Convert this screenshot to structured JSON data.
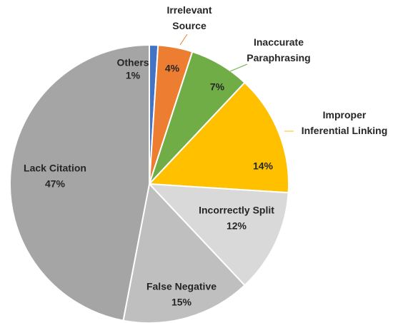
{
  "chart_data": {
    "type": "pie",
    "categories": [
      "Others",
      "Irrelevant Source",
      "Inaccurate Paraphrasing",
      "Improper Inferential Linking",
      "Incorrectly Split",
      "False Negative",
      "Lack Citation"
    ],
    "values": [
      1,
      4,
      7,
      14,
      12,
      15,
      47
    ],
    "value_labels": [
      "1%",
      "4%",
      "7%",
      "14%",
      "12%",
      "15%",
      "47%"
    ],
    "colors": [
      "#4472c4",
      "#ed7d31",
      "#70ad47",
      "#ffc000",
      "#d9d9d9",
      "#bfbfbf",
      "#a5a5a5"
    ]
  }
}
